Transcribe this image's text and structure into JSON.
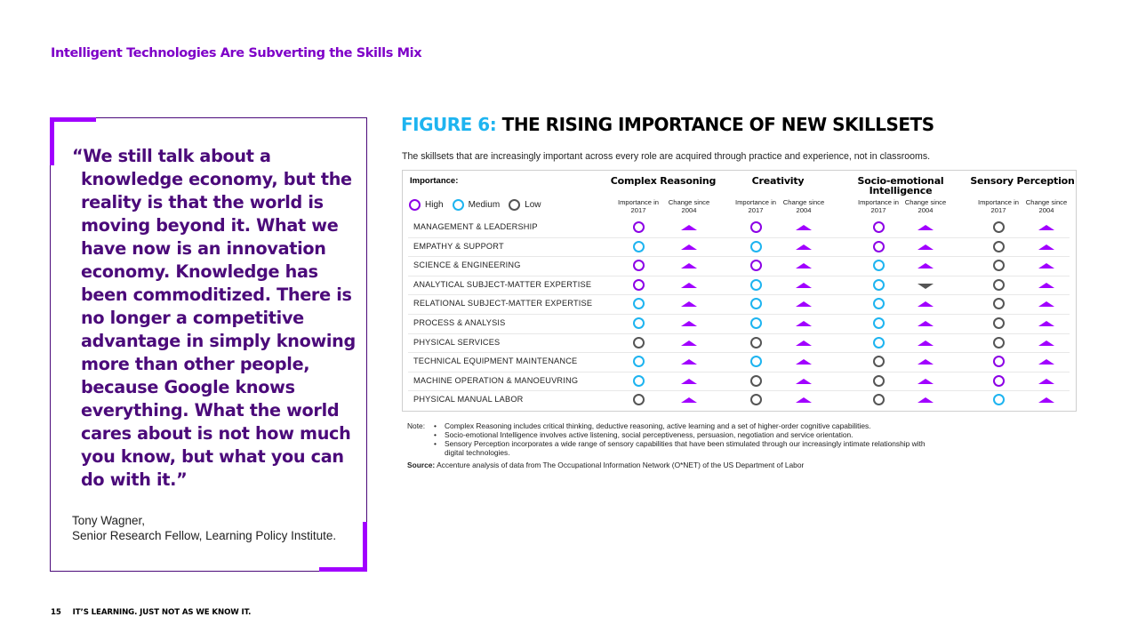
{
  "section_title": "Intelligent Technologies Are Subverting the Skills Mix",
  "quote": {
    "text": "“We still talk about a knowledge economy, but the reality is that the world is moving beyond it. What we have now is an innovation economy. Knowledge has been commoditized. There is no longer a competitive advantage in simply knowing more than other people, because Google knows everything. What the world cares about is not how much you know, but what you can do with it.”",
    "author_name": "Tony Wagner,",
    "author_title": "Senior Research Fellow, Learning Policy Institute."
  },
  "figure": {
    "number": "FIGURE 6:",
    "title": "THE RISING IMPORTANCE OF NEW SKILLSETS",
    "subtitle": "The skillsets that are increasingly important across every role are acquired through practice and experience, not in classrooms."
  },
  "chart_data": {
    "type": "table",
    "legend": {
      "title": "Importance:",
      "levels": [
        {
          "key": "high",
          "label": "High",
          "color": "#8c00e6"
        },
        {
          "key": "medium",
          "label": "Medium",
          "color": "#1eb4f0"
        },
        {
          "key": "low",
          "label": "Low",
          "color": "#555555"
        }
      ]
    },
    "groups": [
      {
        "name": "Complex Reasoning",
        "sub": [
          "Importance in 2017",
          "Change since 2004"
        ]
      },
      {
        "name": "Creativity",
        "sub": [
          "Importance in 2017",
          "Change since 2004"
        ]
      },
      {
        "name": "Socio-emotional Intelligence",
        "sub": [
          "Importance in 2017",
          "Change since 2004"
        ]
      },
      {
        "name": "Sensory Perception",
        "sub": [
          "Importance in 2017",
          "Change since 2004"
        ]
      }
    ],
    "change_colors": {
      "up": "#a100ff",
      "down": "#555555"
    },
    "rows": [
      {
        "skill": "MANAGEMENT & LEADERSHIP",
        "importance": [
          "high",
          "high",
          "high",
          "low"
        ],
        "change": [
          "up",
          "up",
          "up",
          "up"
        ]
      },
      {
        "skill": "EMPATHY & SUPPORT",
        "importance": [
          "medium",
          "medium",
          "high",
          "low"
        ],
        "change": [
          "up",
          "up",
          "up",
          "up"
        ]
      },
      {
        "skill": "SCIENCE & ENGINEERING",
        "importance": [
          "high",
          "high",
          "medium",
          "low"
        ],
        "change": [
          "up",
          "up",
          "up",
          "up"
        ]
      },
      {
        "skill": "ANALYTICAL SUBJECT-MATTER EXPERTISE",
        "importance": [
          "high",
          "medium",
          "medium",
          "low"
        ],
        "change": [
          "up",
          "up",
          "down",
          "up"
        ]
      },
      {
        "skill": "RELATIONAL SUBJECT-MATTER EXPERTISE",
        "importance": [
          "medium",
          "medium",
          "medium",
          "low"
        ],
        "change": [
          "up",
          "up",
          "up",
          "up"
        ]
      },
      {
        "skill": "PROCESS & ANALYSIS",
        "importance": [
          "medium",
          "medium",
          "medium",
          "low"
        ],
        "change": [
          "up",
          "up",
          "up",
          "up"
        ]
      },
      {
        "skill": "PHYSICAL SERVICES",
        "importance": [
          "low",
          "low",
          "medium",
          "low"
        ],
        "change": [
          "up",
          "up",
          "up",
          "up"
        ]
      },
      {
        "skill": "TECHNICAL EQUIPMENT MAINTENANCE",
        "importance": [
          "medium",
          "medium",
          "low",
          "high"
        ],
        "change": [
          "up",
          "up",
          "up",
          "up"
        ]
      },
      {
        "skill": "MACHINE OPERATION & MANOEUVRING",
        "importance": [
          "medium",
          "low",
          "low",
          "high"
        ],
        "change": [
          "up",
          "up",
          "up",
          "up"
        ]
      },
      {
        "skill": "PHYSICAL MANUAL LABOR",
        "importance": [
          "low",
          "low",
          "low",
          "medium"
        ],
        "change": [
          "up",
          "up",
          "up",
          "up"
        ]
      }
    ]
  },
  "notes": {
    "label": "Note:",
    "items": [
      "Complex Reasoning includes critical thinking, deductive reasoning, active learning and a set of higher-order cognitive capabilities.",
      "Socio-emotional Intelligence involves active listening, social perceptiveness, persuasion, negotiation and service orientation.",
      "Sensory Perception incorporates a wide range of sensory capabilities that have been stimulated through our increasingly intimate relationship with digital technologies."
    ],
    "source_label": "Source:",
    "source_text": "Accenture analysis of data from The Occupational Information Network (O*NET) of the US Department of Labor"
  },
  "footer": {
    "page_number": "15",
    "tagline": "IT’S LEARNING. JUST NOT AS WE KNOW IT."
  }
}
